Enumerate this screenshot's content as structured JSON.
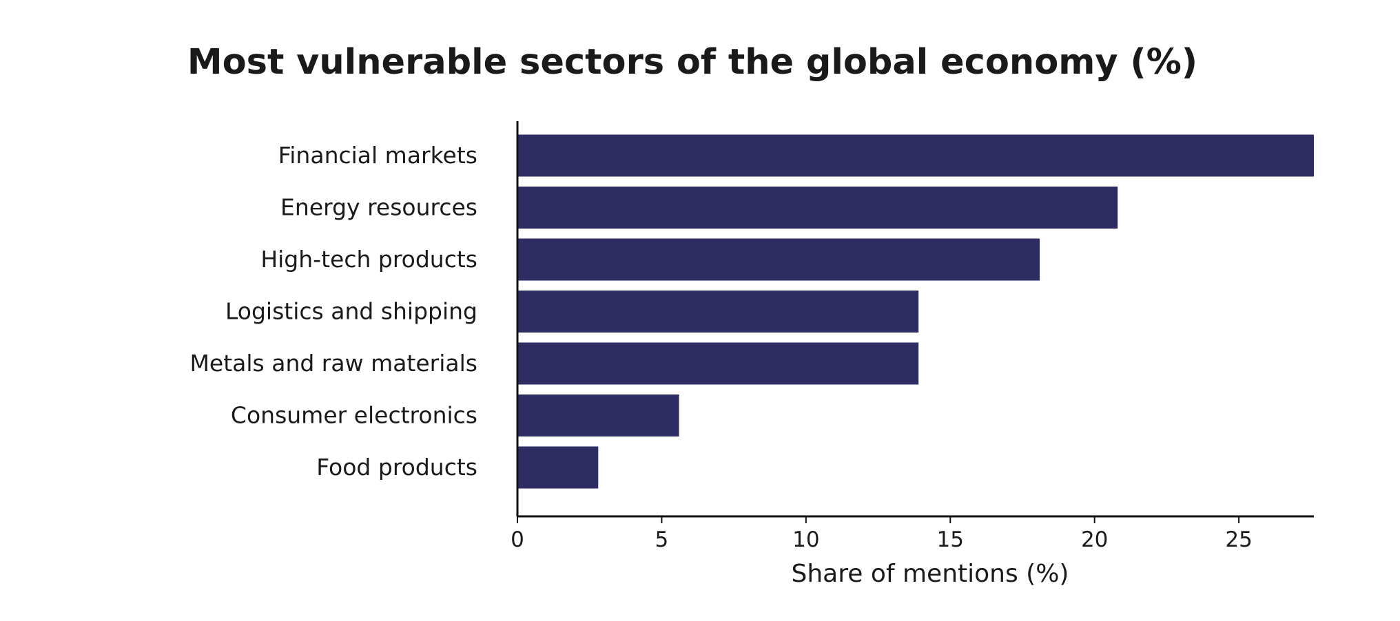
{
  "chart_data": {
    "type": "bar",
    "orientation": "horizontal",
    "title": "Most vulnerable sectors of the global economy (%)",
    "xlabel": "Share of mentions (%)",
    "ylabel": "",
    "categories": [
      "Financial markets",
      "Energy resources",
      "High-tech products",
      "Logistics and shipping",
      "Metals and raw materials",
      "Consumer electronics",
      "Food products"
    ],
    "values": [
      27.6,
      20.8,
      18.1,
      13.9,
      13.9,
      5.6,
      2.8
    ],
    "xlim": [
      0,
      27.6
    ],
    "xticks": [
      0,
      5,
      10,
      15,
      20,
      25
    ],
    "grid": false,
    "legend": "none",
    "bar_color": "#2e2d63",
    "axis_color": "#111111"
  }
}
